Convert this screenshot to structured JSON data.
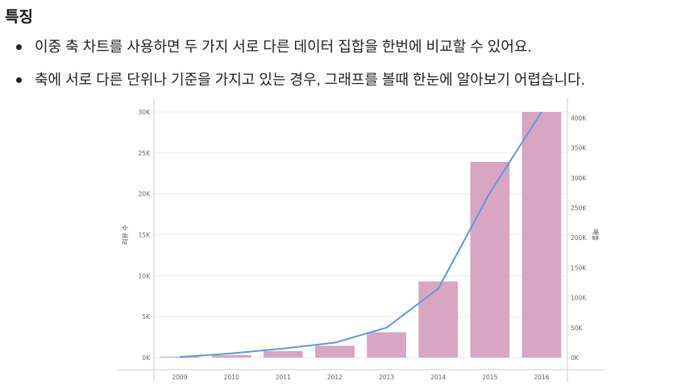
{
  "section": {
    "title": "특징",
    "bullets": [
      "이중 축 차트를 사용하면 두 가지 서로 다른 데이터 집합을 한번에 비교할 수 있어요.",
      "축에 서로 다른 단위나 기준을 가지고 있는 경우, 그래프를 볼때 한눈에 알아보기 어렵습니다."
    ]
  },
  "colors": {
    "bar": "#d8a5c3",
    "line": "#5a9bd8",
    "gridline": "#ececec",
    "axis": "#cccccc",
    "tick_text": "#666666"
  },
  "chart_data": {
    "type": "bar",
    "categories": [
      "2009",
      "2010",
      "2011",
      "2012",
      "2013",
      "2014",
      "2015",
      "2016"
    ],
    "series": [
      {
        "type": "bar",
        "axis": "left",
        "values": [
          120,
          300,
          800,
          1450,
          3100,
          9300,
          23900,
          30000
        ]
      },
      {
        "type": "line",
        "axis": "right",
        "values": [
          1000,
          7000,
          15000,
          25000,
          50000,
          115000,
          275000,
          410000
        ]
      }
    ],
    "y_left": {
      "label": "리뷰 수",
      "range": [
        0,
        30000
      ],
      "ticks": [
        0,
        5000,
        10000,
        15000,
        20000,
        25000,
        30000
      ],
      "tick_labels": [
        "0K",
        "5K",
        "10K",
        "15K",
        "20K",
        "25K",
        "30K"
      ]
    },
    "y_right": {
      "label": "매출",
      "range": [
        0,
        410000
      ],
      "ticks": [
        0,
        50000,
        100000,
        150000,
        200000,
        250000,
        300000,
        350000,
        400000
      ],
      "tick_labels": [
        "0K",
        "50K",
        "100K",
        "150K",
        "200K",
        "250K",
        "300K",
        "350K",
        "400K"
      ]
    },
    "grid": true,
    "legend": "none"
  }
}
